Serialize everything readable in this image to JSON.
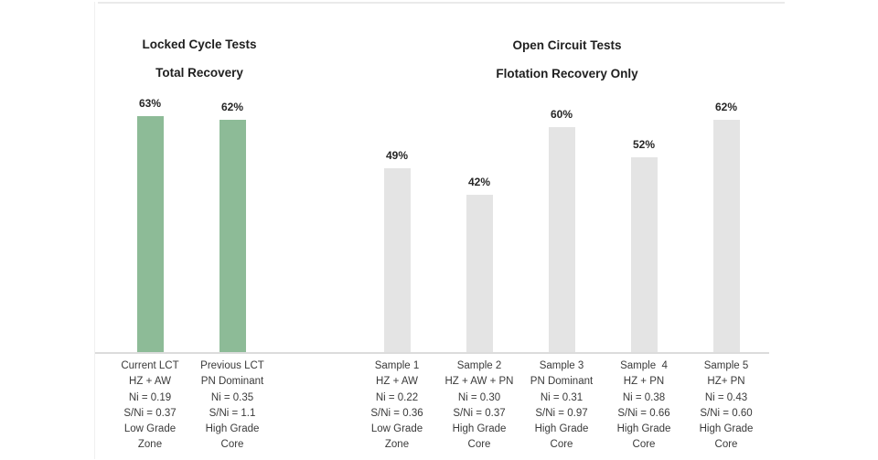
{
  "chart_data": {
    "type": "bar",
    "value_unit": "%",
    "ylim": [
      0,
      70
    ],
    "grid": false,
    "legend": false,
    "colors": {
      "locked_cycle_bar": "#8dbb97",
      "open_circuit_bar": "#e4e4e4",
      "axis_line": "#dcdcdc",
      "text": "#262626"
    },
    "groups": [
      {
        "title_line1": "Locked Cycle Tests",
        "title_line2": "Total Recovery",
        "bar_color": "#8dbb97",
        "bars": [
          {
            "value": 63,
            "value_label": "63%",
            "category_lines": [
              "Current LCT",
              "HZ + AW",
              "Ni = 0.19",
              "S/Ni = 0.37",
              "Low Grade",
              "Zone"
            ]
          },
          {
            "value": 62,
            "value_label": "62%",
            "category_lines": [
              "Previous LCT",
              "PN Dominant",
              "Ni = 0.35",
              "S/Ni = 1.1",
              "High Grade",
              "Core"
            ]
          }
        ]
      },
      {
        "title_line1": "Open Circuit Tests",
        "title_line2": "Flotation Recovery Only",
        "bar_color": "#e4e4e4",
        "bars": [
          {
            "value": 49,
            "value_label": "49%",
            "category_lines": [
              "Sample 1",
              "HZ + AW",
              "Ni = 0.22",
              "S/Ni = 0.36",
              "Low Grade",
              "Zone"
            ]
          },
          {
            "value": 42,
            "value_label": "42%",
            "category_lines": [
              "Sample 2",
              "HZ + AW + PN",
              "Ni = 0.30",
              "S/Ni = 0.37",
              "High Grade",
              "Core"
            ]
          },
          {
            "value": 60,
            "value_label": "60%",
            "category_lines": [
              "Sample 3",
              "PN Dominant",
              "Ni = 0.31",
              "S/Ni = 0.97",
              "High Grade",
              "Core"
            ]
          },
          {
            "value": 52,
            "value_label": "52%",
            "category_lines": [
              "Sample  4",
              "HZ + PN",
              "Ni = 0.38",
              "S/Ni = 0.66",
              "High Grade",
              "Core"
            ]
          },
          {
            "value": 62,
            "value_label": "62%",
            "category_lines": [
              "Sample 5",
              "HZ+ PN",
              "Ni = 0.43",
              "S/Ni = 0.60",
              "High Grade",
              "Core"
            ]
          }
        ]
      }
    ]
  }
}
